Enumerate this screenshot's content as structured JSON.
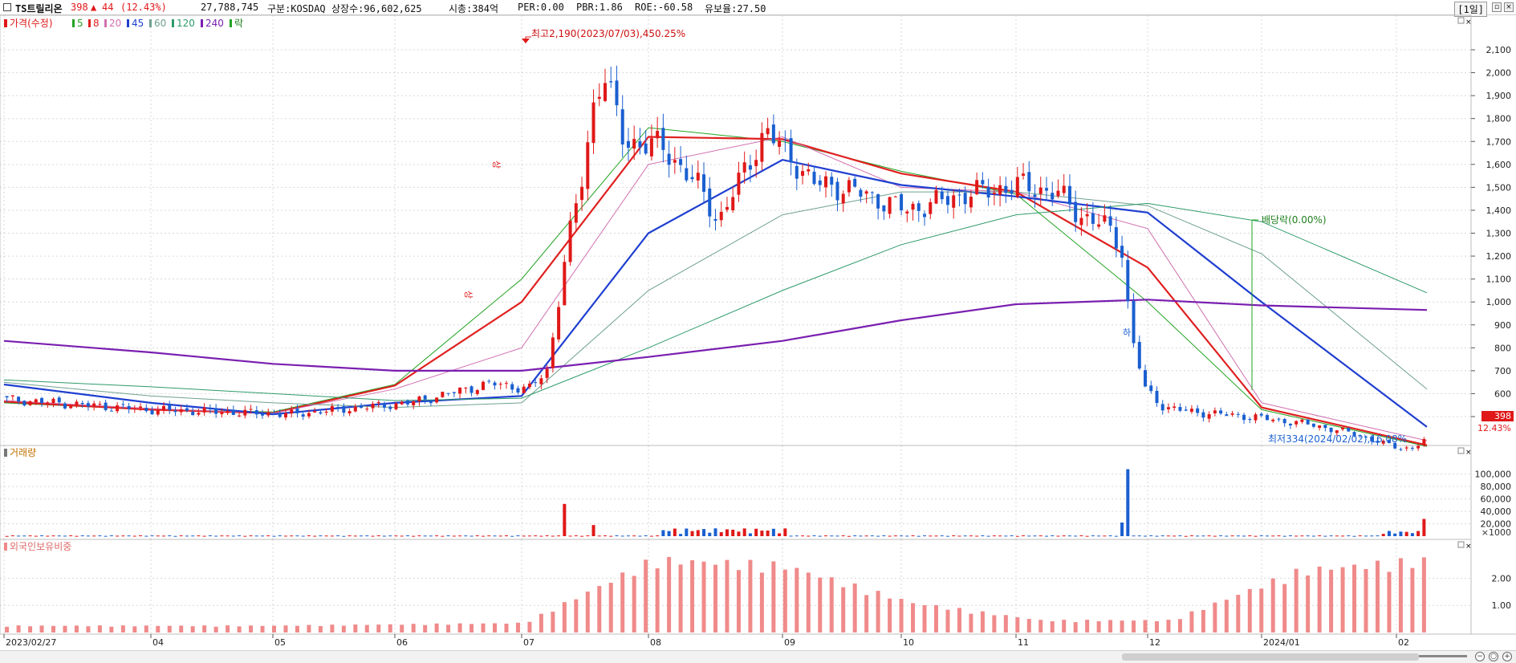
{
  "header": {
    "stock_name": "TS트릴리온",
    "price": "398",
    "change_arrow": "▲",
    "change": "44",
    "change_pct": "(12.43%)",
    "volume": "27,788,745",
    "market": "구분:KOSDAQ",
    "listed_shares": "상장수:96,602,625",
    "market_cap": "시총:384억",
    "per": "PER:0.00",
    "pbr": "PBR:1.86",
    "roe": "ROE:-60.58",
    "float": "유보율:27.50",
    "period": "[1일]"
  },
  "legend": {
    "price_label": "가격(수정)",
    "ma": [
      {
        "label": "5",
        "color": "#22a322"
      },
      {
        "label": "8",
        "color": "#e02020"
      },
      {
        "label": "20",
        "color": "#d070b0"
      },
      {
        "label": "45",
        "color": "#1f3fd0"
      },
      {
        "label": "60",
        "color": "#6fa090"
      },
      {
        "label": "120",
        "color": "#2e9a6a"
      },
      {
        "label": "240",
        "color": "#7a1fb0"
      }
    ],
    "ex_label": "락"
  },
  "colors": {
    "up": "#e01818",
    "down": "#1a5fd0",
    "foreign": "#f08a8a",
    "grid": "#d8d8d8"
  },
  "chart_data": [
    {
      "type": "candlestick",
      "title": "",
      "y_ticks": [
        "2,100",
        "2,000",
        "1,900",
        "1,800",
        "1,700",
        "1,600",
        "1,500",
        "1,400",
        "1,300",
        "1,200",
        "1,100",
        "1,000",
        "900",
        "800",
        "700",
        "600",
        "500"
      ],
      "ylim": [
        370,
        2210
      ],
      "x_tick_labels": [
        "2023/02/27",
        "04",
        "05",
        "06",
        "07",
        "08",
        "09",
        "10",
        "11",
        "12",
        "2024/01",
        "02"
      ],
      "high_annotation": "최고2,190(2023/07/03),450.25%",
      "low_annotation": "최저334(2024/02/02),16.08%",
      "dividend_annotation": "배당락(0.00%)",
      "limit_up_mark": "상",
      "limit_down_mark": "하",
      "current_price_label": "398",
      "current_change_label": "12.43%",
      "ohlc_sampled": [
        {
          "date": "2023/02/27",
          "o": 590,
          "h": 600,
          "l": 570,
          "c": 575
        },
        {
          "date": "2023/04",
          "o": 535,
          "h": 550,
          "l": 525,
          "c": 530
        },
        {
          "date": "2023/05",
          "o": 520,
          "h": 535,
          "l": 505,
          "c": 515
        },
        {
          "date": "2023/06",
          "o": 640,
          "h": 660,
          "l": 625,
          "c": 645
        },
        {
          "date": "2023/06/28",
          "o": 1100,
          "h": 1260,
          "l": 1080,
          "c": 1240
        },
        {
          "date": "2023/07/03",
          "o": 1900,
          "h": 2190,
          "l": 1850,
          "c": 2000
        },
        {
          "date": "2023/08/07",
          "o": 1900,
          "h": 1950,
          "l": 1650,
          "c": 1700
        },
        {
          "date": "2023/09/20",
          "o": 1750,
          "h": 1750,
          "l": 1450,
          "c": 1480
        },
        {
          "date": "2023/11/01",
          "o": 1500,
          "h": 1560,
          "l": 1450,
          "c": 1480
        },
        {
          "date": "2023/11/29",
          "o": 1230,
          "h": 1240,
          "l": 840,
          "c": 860
        },
        {
          "date": "2024/01/02",
          "o": 520,
          "h": 540,
          "l": 505,
          "c": 515
        },
        {
          "date": "2024/02/02",
          "o": 350,
          "h": 360,
          "l": 334,
          "c": 345
        },
        {
          "date": "2024/02/14",
          "o": 360,
          "h": 402,
          "l": 355,
          "c": 398
        }
      ],
      "moving_averages": [
        {
          "name": "5",
          "values": [
            560,
            530,
            520,
            640,
            1100,
            1760,
            1700,
            1570,
            1470,
            1000,
            530,
            370
          ]
        },
        {
          "name": "8",
          "values": [
            565,
            530,
            515,
            635,
            1000,
            1720,
            1710,
            1560,
            1480,
            1150,
            540,
            375
          ]
        },
        {
          "name": "20",
          "values": [
            570,
            535,
            515,
            620,
            800,
            1600,
            1720,
            1500,
            1480,
            1320,
            560,
            395
          ]
        },
        {
          "name": "45",
          "values": [
            640,
            560,
            510,
            560,
            590,
            1300,
            1620,
            1510,
            1460,
            1390,
            1000,
            455
          ]
        },
        {
          "name": "60",
          "values": [
            650,
            590,
            560,
            540,
            560,
            1050,
            1380,
            1480,
            1480,
            1420,
            1210,
            620
          ]
        },
        {
          "name": "120",
          "values": [
            660,
            630,
            600,
            570,
            580,
            800,
            1050,
            1250,
            1380,
            1430,
            1350,
            1040
          ]
        },
        {
          "name": "240",
          "values": [
            830,
            780,
            730,
            700,
            700,
            760,
            830,
            920,
            990,
            1010,
            985,
            965
          ]
        }
      ]
    },
    {
      "type": "bar",
      "title": "거래량",
      "y_ticks": [
        "100,000",
        "80,000",
        "60,000",
        "40,000",
        "20,000"
      ],
      "y_unit": "×1000",
      "ylim": [
        0,
        110000
      ],
      "spikes": [
        {
          "date": "2023/06/30",
          "value": 52000
        },
        {
          "date": "2023/07/03",
          "value": 18000
        },
        {
          "date": "2023/11/28",
          "value": 22000
        },
        {
          "date": "2023/11/29",
          "value": 108000
        },
        {
          "date": "2024/02/14",
          "value": 27800
        }
      ]
    },
    {
      "type": "bar",
      "title": "외국인보유비중",
      "y_ticks": [
        "2.00",
        "1.00"
      ],
      "ylim": [
        0,
        2.9
      ],
      "monthly_levels": [
        0.25,
        0.25,
        0.25,
        0.3,
        0.35,
        2.7,
        2.5,
        1.1,
        0.45,
        0.45,
        2.3,
        2.7
      ]
    }
  ]
}
